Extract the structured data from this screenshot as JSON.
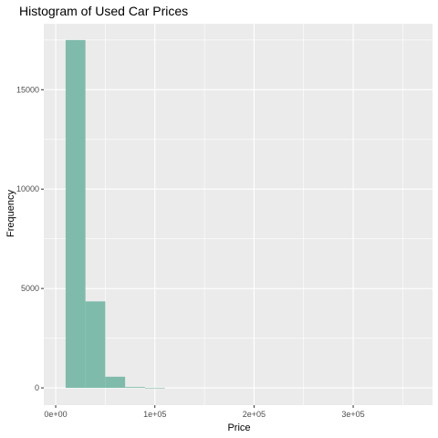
{
  "chart_data": {
    "type": "bar",
    "title": "Histogram of Used Car Prices",
    "xlabel": "Price",
    "ylabel": "Frequency",
    "bar_color": "#7fbbaa",
    "panel_color": "#ebebeb",
    "grid_color": "#ffffff",
    "bin_width": 20000,
    "bins": [
      {
        "x_start": 10000,
        "x_end": 30000,
        "count": 17500
      },
      {
        "x_start": 30000,
        "x_end": 50000,
        "count": 4350
      },
      {
        "x_start": 50000,
        "x_end": 70000,
        "count": 560
      },
      {
        "x_start": 70000,
        "x_end": 90000,
        "count": 40
      },
      {
        "x_start": 90000,
        "x_end": 110000,
        "count": 5
      }
    ],
    "xlim": [
      -12000,
      380000
    ],
    "ylim": [
      -870,
      18320
    ],
    "x_ticks": [
      {
        "value": 0,
        "label": "0e+00"
      },
      {
        "value": 100000,
        "label": "1e+05"
      },
      {
        "value": 200000,
        "label": "2e+05"
      },
      {
        "value": 300000,
        "label": "3e+05"
      }
    ],
    "x_minor_ticks": [
      50000,
      150000,
      250000,
      350000
    ],
    "y_ticks": [
      {
        "value": 0,
        "label": "0"
      },
      {
        "value": 5000,
        "label": "5000"
      },
      {
        "value": 10000,
        "label": "10000"
      },
      {
        "value": 15000,
        "label": "15000"
      }
    ],
    "y_minor_ticks": [
      2500,
      7500,
      12500,
      17500
    ]
  }
}
